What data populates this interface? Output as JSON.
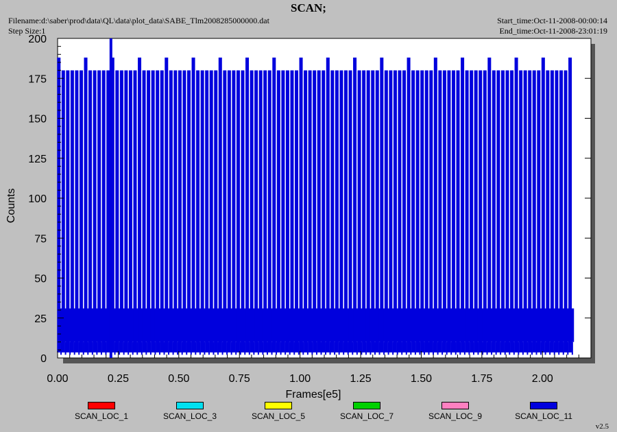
{
  "header": {
    "title": "SCAN;",
    "filename": "Filename:d:\\saber\\prod\\data\\QL\\data\\plot_data\\SABE_Tlm2008285000000.dat",
    "step_size": "Step Size:1",
    "start_time": "Start_time:Oct-11-2008-00:00:14",
    "end_time": "End_time:Oct-11-2008-23:01:19"
  },
  "version": "v2.5",
  "colors": {
    "background": "#c0c0c0",
    "plot_background": "#ffffff",
    "main_series": "#0000dd"
  },
  "chart_data": {
    "type": "line",
    "title": "SCAN;",
    "xlabel": "Frames[e5]",
    "ylabel": "Counts",
    "xlim": [
      0,
      2.2
    ],
    "ylim": [
      0,
      200
    ],
    "x_ticks": [
      "0.00",
      "0.25",
      "0.50",
      "0.75",
      "1.00",
      "1.25",
      "1.50",
      "1.75",
      "2.00"
    ],
    "y_ticks": [
      "0",
      "25",
      "50",
      "75",
      "100",
      "125",
      "150",
      "175",
      "200"
    ],
    "legend_position": "bottom",
    "series": [
      {
        "name": "SCAN_LOC_1",
        "color": "#ff0000"
      },
      {
        "name": "SCAN_LOC_3",
        "color": "#00e0f0"
      },
      {
        "name": "SCAN_LOC_5",
        "color": "#ffff00"
      },
      {
        "name": "SCAN_LOC_7",
        "color": "#00d000"
      },
      {
        "name": "SCAN_LOC_9",
        "color": "#ff80c0"
      },
      {
        "name": "SCAN_LOC_11",
        "color": "#0000dd",
        "baseline_band": [
          10,
          31
        ],
        "frame_end": 2.13,
        "spike_period": 0.0185,
        "spike_peaks": [
          180,
          188
        ],
        "max_value": 200,
        "max_value_x": 0.22
      }
    ]
  }
}
